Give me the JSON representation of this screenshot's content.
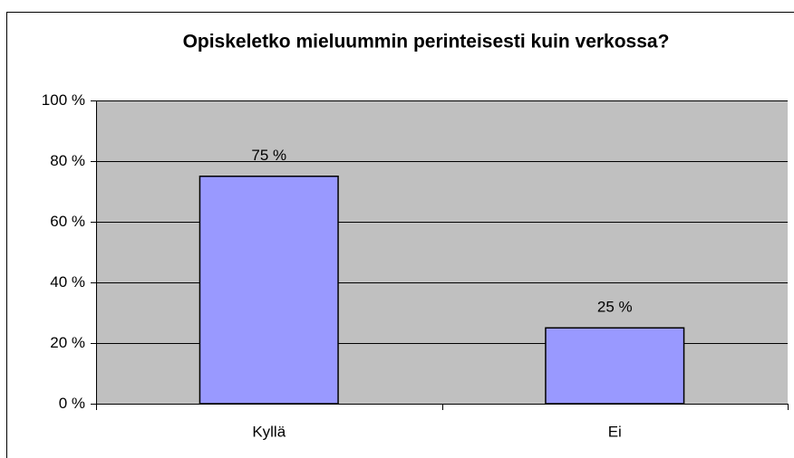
{
  "chart_data": {
    "type": "bar",
    "title": "Opiskeletko mieluummin perinteisesti kuin verkossa?",
    "categories": [
      "Kyllä",
      "Ei"
    ],
    "values": [
      75,
      25
    ],
    "value_labels": [
      "75 %",
      "25 %"
    ],
    "color": "#9999ff",
    "ylim": [
      0,
      100
    ],
    "yticks": [
      {
        "value": 0,
        "label": "0 %"
      },
      {
        "value": 20,
        "label": "20 %"
      },
      {
        "value": 40,
        "label": "40 %"
      },
      {
        "value": 60,
        "label": "60 %"
      },
      {
        "value": 80,
        "label": "80 %"
      },
      {
        "value": 100,
        "label": "100 %"
      }
    ],
    "grid": true
  }
}
